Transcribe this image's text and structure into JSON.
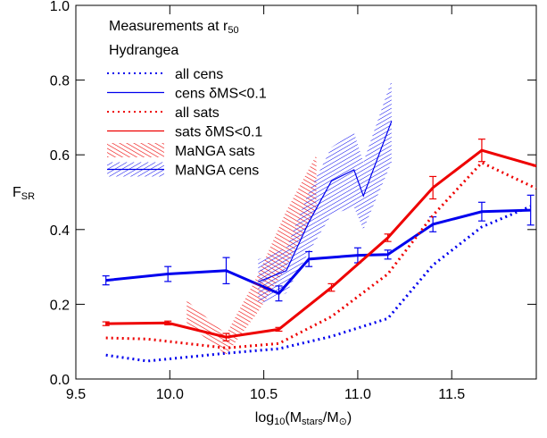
{
  "chart_data": {
    "type": "line",
    "annotation": [
      {
        "text": "Measurements at r",
        "sub": false
      },
      {
        "text": "50",
        "sub": true
      }
    ],
    "subtitle": "Hydrangea",
    "xlabel": [
      {
        "text": "log",
        "sub": false
      },
      {
        "text": "10",
        "sub": true
      },
      {
        "text": "(M",
        "sub": false
      },
      {
        "text": "stars",
        "sub": true
      },
      {
        "text": "/M",
        "sub": false
      },
      {
        "text": "⊙",
        "sub": true
      },
      {
        "text": ")",
        "sub": false
      }
    ],
    "ylabel": [
      {
        "text": "F",
        "sub": false
      },
      {
        "text": "SR",
        "sub": true
      }
    ],
    "xlim": [
      9.5,
      11.95
    ],
    "ylim": [
      0,
      1
    ],
    "xticks": [
      9.5,
      {
        "value": 10,
        "label": "10.0"
      },
      10.5,
      {
        "value": 11,
        "label": "11.0"
      },
      11.5
    ],
    "yticks": [
      {
        "value": 0,
        "label": "0.0"
      },
      0.2,
      0.4,
      0.6,
      0.8,
      {
        "value": 1,
        "label": "1.0"
      }
    ],
    "series": [
      {
        "name": "all cens",
        "color": "#0000ee",
        "style": "dotted",
        "x": [
          9.66,
          9.88,
          10.3,
          10.58,
          10.86,
          11.16,
          11.4,
          11.66,
          11.92
        ],
        "values": [
          0.064,
          0.048,
          0.069,
          0.081,
          0.114,
          0.162,
          0.305,
          0.407,
          0.462
        ]
      },
      {
        "name": "cens δMS<0.1",
        "color": "#0000ee",
        "style": "solid",
        "x": [
          9.66,
          9.99,
          10.3,
          10.58,
          10.74,
          11.0,
          11.16,
          11.4,
          11.66,
          11.92
        ],
        "values": [
          0.264,
          0.281,
          0.29,
          0.229,
          0.321,
          0.331,
          0.333,
          0.414,
          0.448,
          0.452
        ],
        "errors": [
          0.012,
          0.02,
          0.035,
          0.02,
          0.02,
          0.02,
          0.012,
          0.02,
          0.025,
          0.04
        ]
      },
      {
        "name": "all sats",
        "color": "#ee0000",
        "style": "dotted",
        "x": [
          9.66,
          9.88,
          10.3,
          10.58,
          10.86,
          11.16,
          11.4,
          11.66,
          11.95
        ],
        "values": [
          0.11,
          0.107,
          0.083,
          0.095,
          0.167,
          0.281,
          0.438,
          0.579,
          0.51
        ]
      },
      {
        "name": "sats δMS<0.1",
        "color": "#ee0000",
        "style": "solid",
        "x": [
          9.66,
          9.99,
          10.3,
          10.58,
          10.86,
          11.16,
          11.4,
          11.66,
          11.95
        ],
        "values": [
          0.148,
          0.15,
          0.112,
          0.133,
          0.245,
          0.378,
          0.512,
          0.612,
          0.57
        ],
        "errors": [
          0.005,
          0.005,
          0.01,
          0.005,
          0.01,
          0.01,
          0.03,
          0.03,
          0
        ]
      },
      {
        "name": "MaNGA sats",
        "color": "#ee0000",
        "style": "band",
        "x": [
          10.09,
          10.3,
          10.47,
          10.62,
          10.78
        ],
        "lower": [
          0.15,
          0.065,
          0.18,
          0.3,
          0.46
        ],
        "upper": [
          0.21,
          0.12,
          0.28,
          0.45,
          0.6
        ]
      },
      {
        "name": "MaNGA cens",
        "color": "#0000ee",
        "style": "band",
        "x": [
          10.47,
          10.62,
          10.74,
          10.86,
          10.98,
          11.03,
          11.18
        ],
        "values": [
          0.26,
          0.29,
          0.42,
          0.53,
          0.56,
          0.49,
          0.69
        ],
        "lower": [
          0.2,
          0.23,
          0.34,
          0.44,
          0.46,
          0.4,
          0.58
        ],
        "upper": [
          0.32,
          0.35,
          0.5,
          0.62,
          0.66,
          0.58,
          0.8
        ]
      }
    ]
  }
}
